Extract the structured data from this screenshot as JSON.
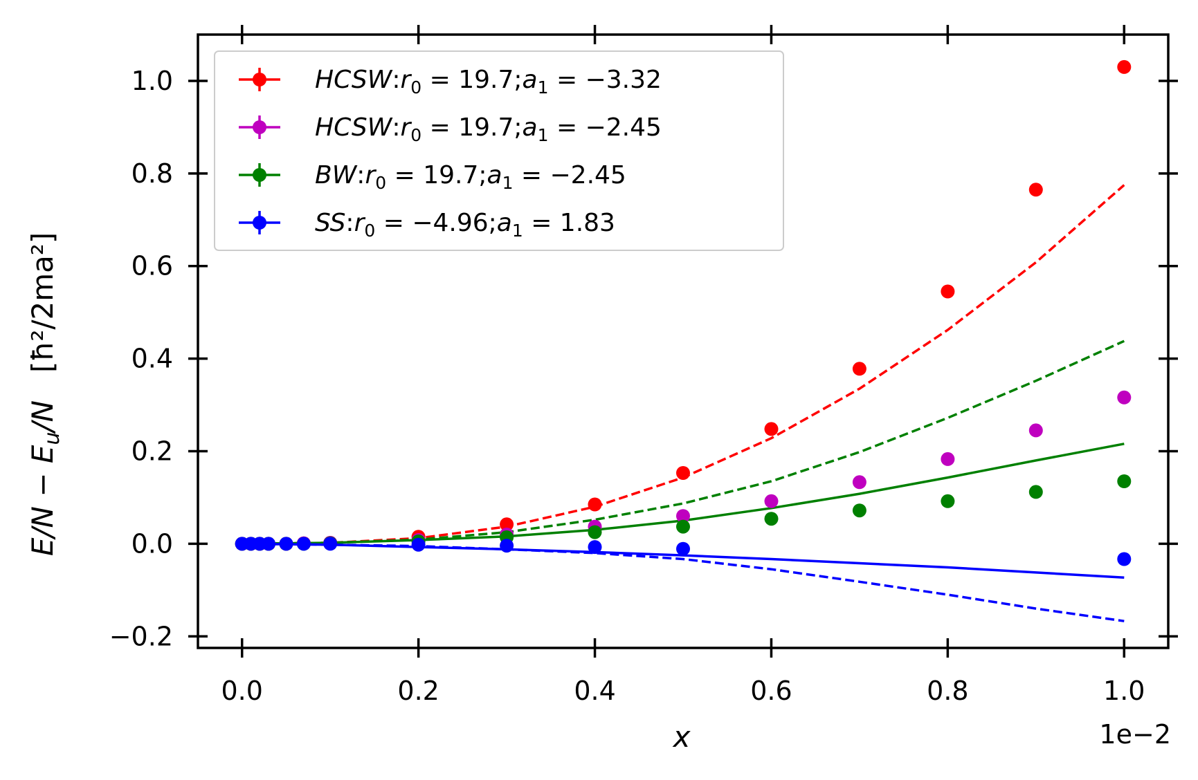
{
  "chart_data": {
    "type": "scatter",
    "xlabel": "x",
    "ylabel_main": "E/N − E",
    "ylabel_sub": "u",
    "ylabel_tail": "/N",
    "ylabel_units": "[ħ²/2ma²]",
    "x_multiplier": "1e−2",
    "xlim": [
      -0.05,
      1.05
    ],
    "ylim": [
      -0.225,
      1.1
    ],
    "xticks": [
      0.0,
      0.2,
      0.4,
      0.6,
      0.8,
      1.0
    ],
    "xtick_labels": [
      "0.0",
      "0.2",
      "0.4",
      "0.6",
      "0.8",
      "1.0"
    ],
    "yticks": [
      -0.2,
      0.0,
      0.2,
      0.4,
      0.6,
      0.8,
      1.0
    ],
    "ytick_labels": [
      "−0.2",
      "0.0",
      "0.2",
      "0.4",
      "0.6",
      "0.8",
      "1.0"
    ],
    "legend_position": "top-left",
    "series": [
      {
        "name": "HCSW: r0 = 19.7; a1 = −3.32",
        "label_main": "HCSW",
        "r0": "19.7",
        "a1": "−3.32",
        "color": "#ff0000",
        "x": [
          0.0,
          0.01,
          0.02,
          0.03,
          0.05,
          0.07,
          0.1,
          0.2,
          0.3,
          0.4,
          0.5,
          0.6,
          0.7,
          0.8,
          0.9,
          1.0
        ],
        "y": [
          0.0,
          0.0,
          0.0,
          0.0,
          0.0,
          0.001,
          0.002,
          0.015,
          0.042,
          0.085,
          0.153,
          0.248,
          0.378,
          0.545,
          0.765,
          1.03
        ]
      },
      {
        "name": "HCSW: r0 = 19.7; a1 = −2.45",
        "label_main": "HCSW",
        "r0": "19.7",
        "a1": "−2.45",
        "color": "#bf00bf",
        "x": [
          0.0,
          0.01,
          0.02,
          0.03,
          0.05,
          0.07,
          0.1,
          0.2,
          0.3,
          0.4,
          0.5,
          0.6,
          0.7,
          0.8,
          0.9,
          1.0
        ],
        "y": [
          0.0,
          0.0,
          0.0,
          0.0,
          0.0,
          0.001,
          0.002,
          0.008,
          0.02,
          0.037,
          0.06,
          0.092,
          0.133,
          0.183,
          0.245,
          0.316
        ]
      },
      {
        "name": "BW: r0 = 19.7; a1 = −2.45",
        "label_main": "BW",
        "r0": "19.7",
        "a1": "−2.45",
        "color": "#008000",
        "x": [
          0.0,
          0.01,
          0.02,
          0.03,
          0.05,
          0.07,
          0.1,
          0.2,
          0.3,
          0.4,
          0.5,
          0.6,
          0.7,
          0.8,
          0.9,
          1.0
        ],
        "y": [
          0.0,
          0.0,
          0.0,
          0.0,
          0.0,
          0.0,
          0.001,
          0.005,
          0.014,
          0.025,
          0.037,
          0.054,
          0.072,
          0.092,
          0.112,
          0.135
        ]
      },
      {
        "name": "SS: r0 = −4.96; a1 = 1.83",
        "label_main": "SS",
        "r0": "−4.96",
        "a1": "1.83",
        "color": "#0000ff",
        "x": [
          0.0,
          0.01,
          0.02,
          0.03,
          0.05,
          0.07,
          0.1,
          0.2,
          0.3,
          0.4,
          0.5,
          1.0
        ],
        "y": [
          0.0,
          0.0,
          0.0,
          0.0,
          0.0,
          0.0,
          0.0,
          -0.002,
          -0.004,
          -0.007,
          -0.011,
          -0.033
        ]
      }
    ],
    "curves": [
      {
        "name": "red dashed fit",
        "color": "#ff0000",
        "style": "dashed",
        "x": [
          0.0,
          0.1,
          0.2,
          0.3,
          0.4,
          0.5,
          0.6,
          0.7,
          0.8,
          0.9,
          1.0
        ],
        "y": [
          0.0,
          0.002,
          0.012,
          0.037,
          0.08,
          0.143,
          0.228,
          0.335,
          0.462,
          0.608,
          0.775
        ]
      },
      {
        "name": "green dashed fit",
        "color": "#008000",
        "style": "dashed",
        "x": [
          0.0,
          0.1,
          0.2,
          0.3,
          0.4,
          0.5,
          0.6,
          0.7,
          0.8,
          0.9,
          1.0
        ],
        "y": [
          0.0,
          0.002,
          0.009,
          0.025,
          0.052,
          0.087,
          0.135,
          0.198,
          0.272,
          0.352,
          0.438
        ]
      },
      {
        "name": "green solid fit",
        "color": "#008000",
        "style": "solid",
        "x": [
          0.0,
          0.1,
          0.2,
          0.3,
          0.4,
          0.5,
          0.6,
          0.7,
          0.8,
          0.9,
          1.0
        ],
        "y": [
          0.0,
          0.002,
          0.008,
          0.016,
          0.03,
          0.05,
          0.077,
          0.108,
          0.143,
          0.18,
          0.216
        ]
      },
      {
        "name": "blue solid fit",
        "color": "#0000ff",
        "style": "solid",
        "x": [
          0.0,
          0.1,
          0.2,
          0.3,
          0.4,
          0.5,
          0.6,
          0.7,
          0.8,
          0.9,
          1.0
        ],
        "y": [
          0.0,
          -0.002,
          -0.007,
          -0.012,
          -0.018,
          -0.025,
          -0.033,
          -0.042,
          -0.051,
          -0.062,
          -0.073
        ]
      },
      {
        "name": "blue dashed fit",
        "color": "#0000ff",
        "style": "dashed",
        "x": [
          0.0,
          0.1,
          0.2,
          0.3,
          0.4,
          0.5,
          0.6,
          0.7,
          0.8,
          0.9,
          1.0
        ],
        "y": [
          0.0,
          -0.002,
          -0.005,
          -0.012,
          -0.02,
          -0.033,
          -0.055,
          -0.082,
          -0.11,
          -0.14,
          -0.167
        ]
      }
    ]
  }
}
